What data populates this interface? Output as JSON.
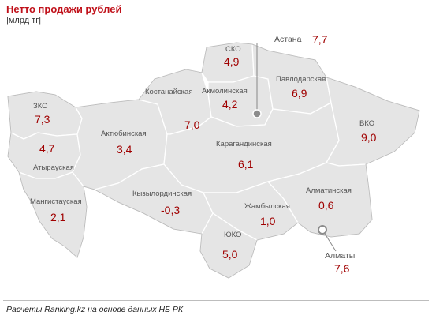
{
  "header": {
    "title": "Нетто продажи рублей",
    "unit": "|млрд тг|"
  },
  "regions": [
    {
      "name": "СКО",
      "value": "4,9"
    },
    {
      "name": "Астана",
      "value": "7,7"
    },
    {
      "name": "Акмолинская",
      "value": "4,2"
    },
    {
      "name": "Павлодарская",
      "value": "6,9"
    },
    {
      "name": "Костанайская",
      "value": "7,0"
    },
    {
      "name": "ЗКО",
      "value": "7,3"
    },
    {
      "name": "Актюбинская",
      "value": "3,4"
    },
    {
      "name": "ВКО",
      "value": "9,0"
    },
    {
      "name": "Карагандинская",
      "value": "6,1"
    },
    {
      "name": "Атырауская",
      "value": "4,7"
    },
    {
      "name": "Мангистауская",
      "value": "2,1"
    },
    {
      "name": "Кызылординская",
      "value": "-0,3"
    },
    {
      "name": "Жамбылская",
      "value": "1,0"
    },
    {
      "name": "Алматинская",
      "value": "0,6"
    },
    {
      "name": "ЮКО",
      "value": "5,0"
    },
    {
      "name": "Алматы",
      "value": "7,6"
    }
  ],
  "footer": {
    "source": "Расчеты Ranking.kz на основе данных НБ РК"
  }
}
